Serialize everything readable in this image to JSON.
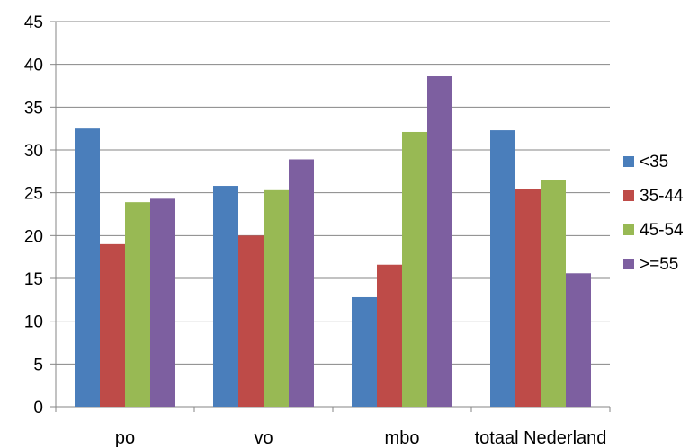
{
  "chart_data": {
    "type": "bar",
    "title": "",
    "xlabel": "",
    "ylabel": "",
    "categories": [
      "po",
      "vo",
      "mbo",
      "totaal Nederland"
    ],
    "series": [
      {
        "name": "<35",
        "color": "#4a7ebb",
        "values": [
          32.5,
          25.8,
          12.8,
          32.3
        ]
      },
      {
        "name": "35-44",
        "color": "#be4b48",
        "values": [
          19.0,
          20.0,
          16.6,
          25.4
        ]
      },
      {
        "name": "45-54",
        "color": "#98b954",
        "values": [
          23.9,
          25.3,
          32.1,
          26.5
        ]
      },
      {
        "name": ">=55",
        "color": "#7d5fa0",
        "values": [
          24.3,
          28.9,
          38.6,
          15.6
        ]
      }
    ],
    "ylim": [
      0,
      45
    ],
    "yticks": [
      0,
      5,
      10,
      15,
      20,
      25,
      30,
      35,
      40,
      45
    ],
    "grid": true,
    "legend_position": "right"
  }
}
